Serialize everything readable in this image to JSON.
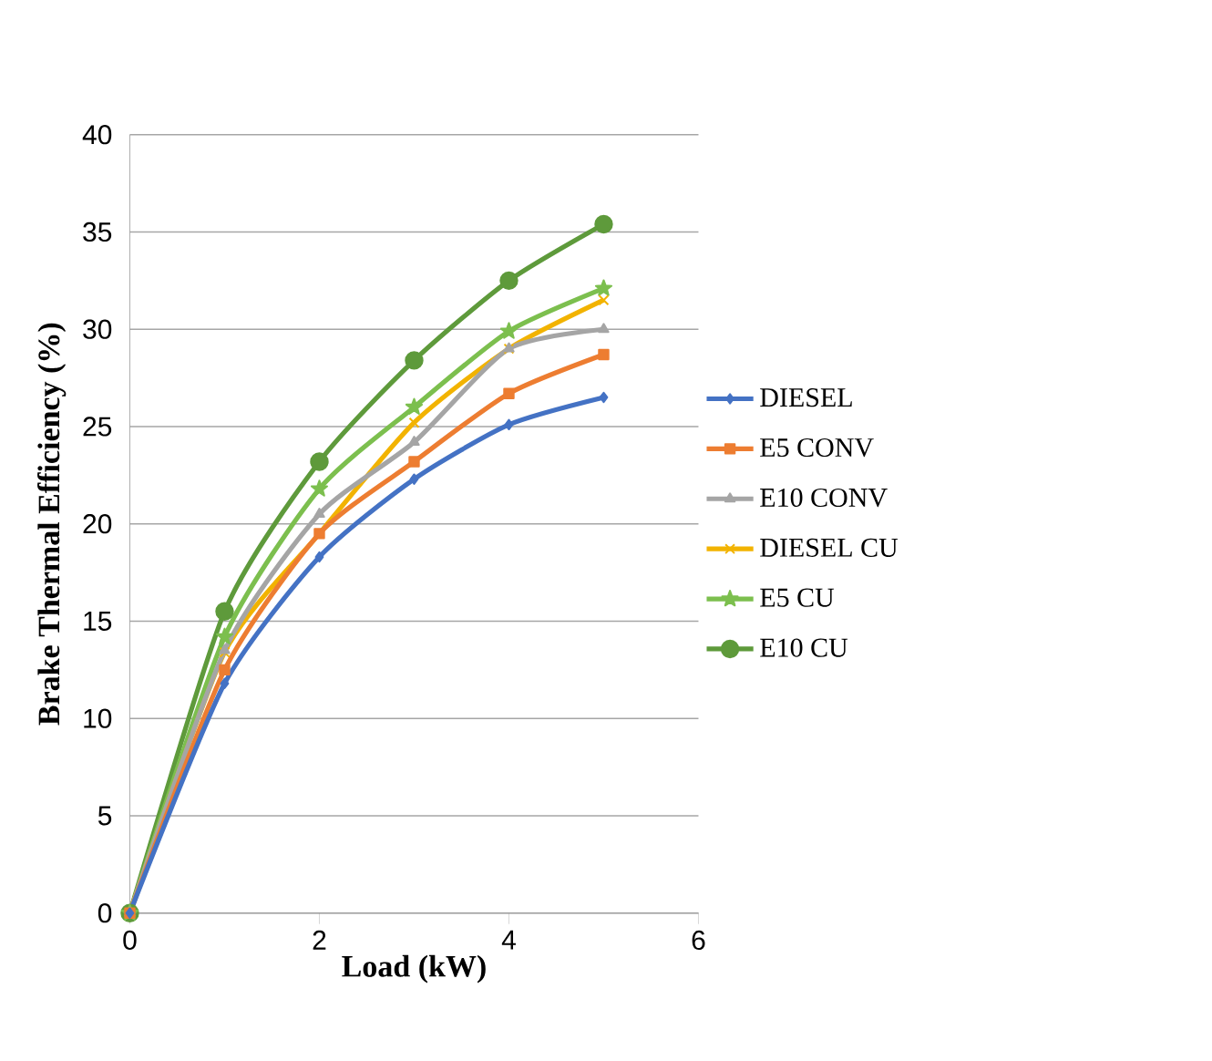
{
  "chart_data": {
    "type": "line",
    "xlabel": "Load (kW)",
    "ylabel": "Brake Thermal Efficiency (%)",
    "x": [
      0,
      1,
      2,
      3,
      4,
      5
    ],
    "xlim": [
      0,
      6
    ],
    "xticks": [
      0,
      2,
      4,
      6
    ],
    "ylim": [
      0,
      40
    ],
    "yticks": [
      0,
      5,
      10,
      15,
      20,
      25,
      30,
      35,
      40
    ],
    "grid": "y",
    "legend": "right",
    "series": [
      {
        "name": "DIESEL",
        "color": "#4472c4",
        "marker": "diamond",
        "values": [
          0,
          11.8,
          18.3,
          22.3,
          25.1,
          26.5
        ]
      },
      {
        "name": "E5 CONV",
        "color": "#ed7d31",
        "marker": "square",
        "values": [
          0,
          12.5,
          19.5,
          23.2,
          26.7,
          28.7
        ]
      },
      {
        "name": "E10 CONV",
        "color": "#a5a5a5",
        "marker": "triangle",
        "values": [
          0,
          13.5,
          20.5,
          24.2,
          29.0,
          30.0
        ]
      },
      {
        "name": "DIESEL CU",
        "color": "#f2b300",
        "marker": "cross",
        "values": [
          0,
          13.4,
          19.5,
          25.2,
          29.0,
          31.5
        ]
      },
      {
        "name": "E5 CU",
        "color": "#7cbf4e",
        "marker": "star",
        "values": [
          0,
          14.2,
          21.8,
          26.0,
          29.9,
          32.1
        ]
      },
      {
        "name": "E10 CU",
        "color": "#5e9a3b",
        "marker": "circle",
        "values": [
          0,
          15.5,
          23.2,
          28.4,
          32.5,
          35.4
        ]
      }
    ]
  }
}
